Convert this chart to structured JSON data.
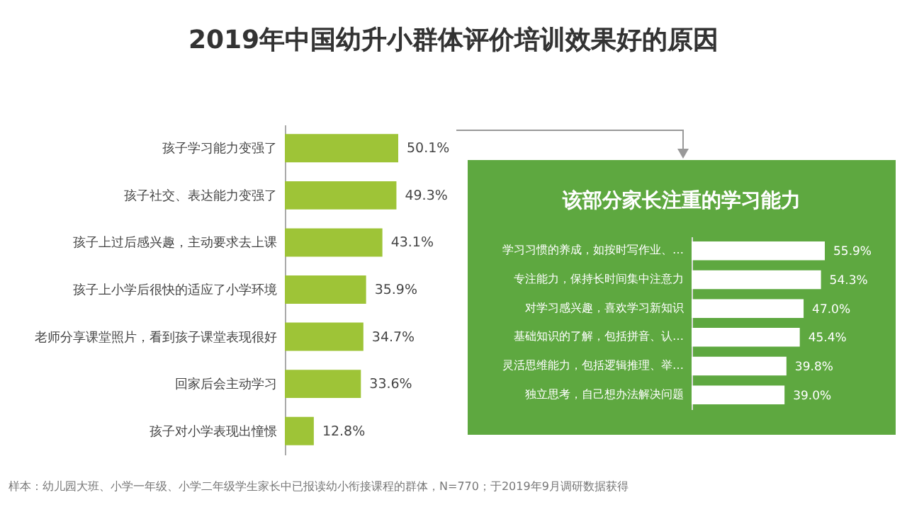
{
  "chart_data": [
    {
      "type": "bar",
      "orientation": "horizontal",
      "title": "2019年中国幼升小群体评价培训效果好的原因",
      "categories": [
        "孩子学习能力变强了",
        "孩子社交、表达能力变强了",
        "孩子上过后感兴趣，主动要求去上课",
        "孩子上小学后很快的适应了小学环境",
        "老师分享课堂照片，看到孩子课堂表现很好",
        "回家后会主动学习",
        "孩子对小学表现出憧憬"
      ],
      "values": [
        50.1,
        49.3,
        43.1,
        35.9,
        34.7,
        33.6,
        12.8
      ],
      "value_labels": [
        "50.1%",
        "49.3%",
        "43.1%",
        "35.9%",
        "34.7%",
        "33.6%",
        "12.8%"
      ],
      "color": "#9ec437",
      "annotations": [
        "样本：幼儿园大班、小学一年级、小学二年级学生家长中已报读幼小衔接课程的群体，N=770；于2019年9月调研数据获得"
      ]
    },
    {
      "type": "bar",
      "orientation": "horizontal",
      "title": "该部分家长注重的学习能力",
      "categories": [
        "学习习惯的养成，如按时写作业、…",
        "专注能力，保持长时间集中注意力",
        "对学习感兴趣，喜欢学习新知识",
        "基础知识的了解，包括拼音、认…",
        "灵活思维能力，包括逻辑推理、举…",
        "独立思考，自己想办法解决问题"
      ],
      "values": [
        55.9,
        54.3,
        47.0,
        45.4,
        39.8,
        39.0
      ],
      "value_labels": [
        "55.9%",
        "54.3%",
        "47.0%",
        "45.4%",
        "39.8%",
        "39.0%"
      ],
      "color": "#ffffff"
    }
  ]
}
